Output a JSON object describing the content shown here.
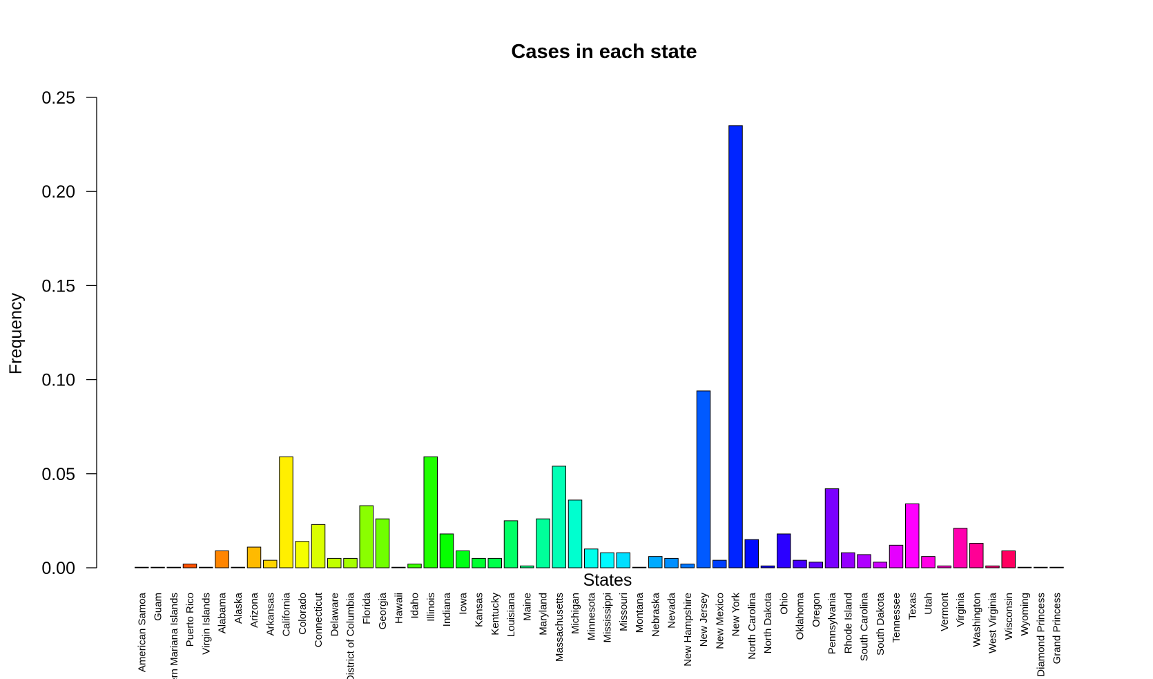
{
  "chart_data": {
    "type": "bar",
    "title": "Cases in each state",
    "xlabel": "States",
    "ylabel": "Frequency",
    "ylim": [
      0,
      0.25
    ],
    "yticks": [
      "0.00",
      "0.05",
      "0.10",
      "0.15",
      "0.20",
      "0.25"
    ],
    "grid": false,
    "legend": "none",
    "categories": [
      "American Samoa",
      "Guam",
      "Northern Mariana Islands",
      "Puerto Rico",
      "Virgin Islands",
      "Alabama",
      "Alaska",
      "Arizona",
      "Arkansas",
      "California",
      "Colorado",
      "Connecticut",
      "Delaware",
      "District of Columbia",
      "Florida",
      "Georgia",
      "Hawaii",
      "Idaho",
      "Illinois",
      "Indiana",
      "Iowa",
      "Kansas",
      "Kentucky",
      "Louisiana",
      "Maine",
      "Maryland",
      "Massachusetts",
      "Michigan",
      "Minnesota",
      "Mississippi",
      "Missouri",
      "Montana",
      "Nebraska",
      "Nevada",
      "New Hampshire",
      "New Jersey",
      "New Mexico",
      "New York",
      "North Carolina",
      "North Dakota",
      "Ohio",
      "Oklahoma",
      "Oregon",
      "Pennsylvania",
      "Rhode Island",
      "South Carolina",
      "South Dakota",
      "Tennessee",
      "Texas",
      "Utah",
      "Vermont",
      "Virginia",
      "Washington",
      "West Virginia",
      "Wisconsin",
      "Wyoming",
      "Diamond Princess",
      "Grand Princess"
    ],
    "values": [
      0.0,
      0.0,
      0.0,
      0.002,
      0.0,
      0.009,
      0.0,
      0.011,
      0.004,
      0.059,
      0.014,
      0.023,
      0.005,
      0.005,
      0.033,
      0.026,
      0.0,
      0.002,
      0.059,
      0.018,
      0.009,
      0.005,
      0.005,
      0.025,
      0.001,
      0.026,
      0.054,
      0.036,
      0.01,
      0.008,
      0.008,
      0.0,
      0.006,
      0.005,
      0.002,
      0.094,
      0.004,
      0.235,
      0.015,
      0.001,
      0.018,
      0.004,
      0.003,
      0.042,
      0.008,
      0.007,
      0.003,
      0.012,
      0.034,
      0.006,
      0.001,
      0.021,
      0.013,
      0.001,
      0.009,
      0.0,
      0.0,
      0.0
    ],
    "colors": [
      "#FF0000",
      "#FF1B00",
      "#FF3500",
      "#FF5000",
      "#FF6A00",
      "#FF8500",
      "#FF9F00",
      "#FFBA00",
      "#FFD400",
      "#FFEF00",
      "#F5FF00",
      "#DAFF00",
      "#C0FF00",
      "#A5FF00",
      "#8AFF00",
      "#70FF00",
      "#55FF00",
      "#3BFF00",
      "#20FF00",
      "#06FF00",
      "#00FF15",
      "#00FF30",
      "#00FF4A",
      "#00FF65",
      "#00FF80",
      "#00FF9A",
      "#00FFB5",
      "#00FFCF",
      "#00FFEA",
      "#00F9FF",
      "#00DFFF",
      "#00C4FF",
      "#00AAFF",
      "#008FFF",
      "#0075FF",
      "#005AFF",
      "#003FFF",
      "#0025FF",
      "#000AFF",
      "#1000FF",
      "#2B00FF",
      "#4500FF",
      "#6000FF",
      "#7A00FF",
      "#9500FF",
      "#AF00FF",
      "#CA00FF",
      "#E500FF",
      "#FF00FF",
      "#FF00E5",
      "#FF00CA",
      "#FF00AF",
      "#FF0095",
      "#FF007A",
      "#FF0060",
      "#FF0045",
      "#FF002B",
      "#FF0010"
    ]
  }
}
